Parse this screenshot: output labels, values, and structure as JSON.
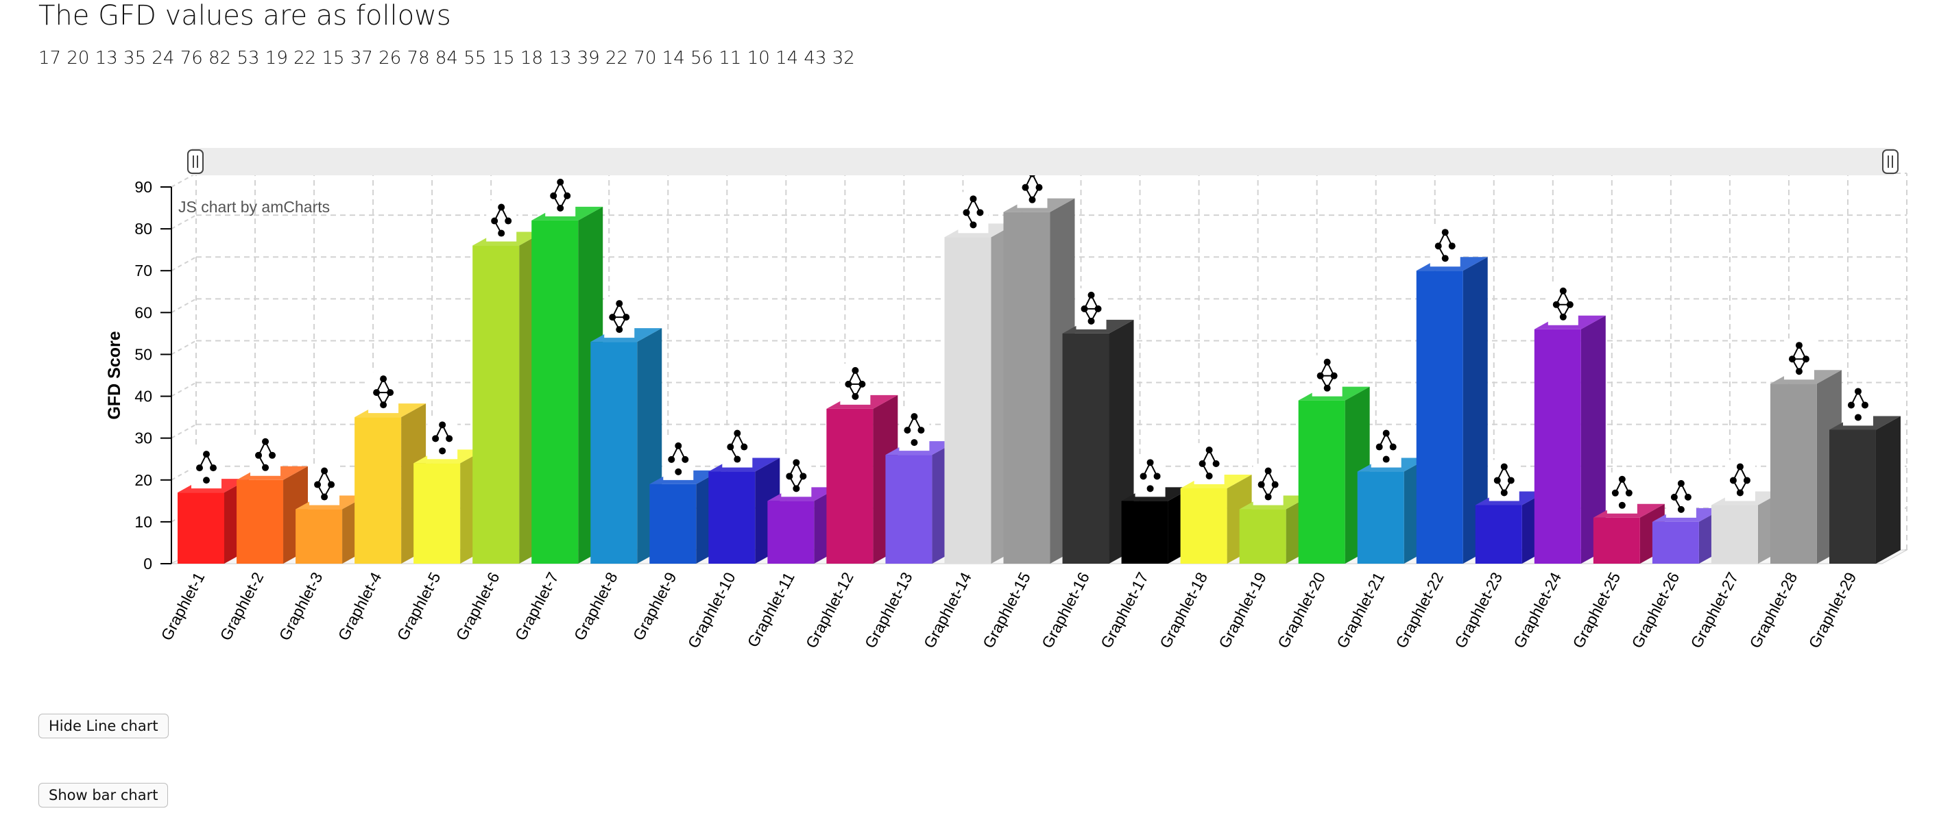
{
  "page": {
    "heading": "The GFD values are as follows",
    "values_line": "17 20 13 35 24 76 82 53 19 22 15 37 26 78 84 55 15 18 13 39 22 70 14 56 11 10 14 43 32"
  },
  "buttons": {
    "hide_line": "Hide Line chart",
    "show_bar": "Show bar chart"
  },
  "chart_data": {
    "type": "bar",
    "style": "3d-column",
    "categories": [
      "Graphlet-1",
      "Graphlet-2",
      "Graphlet-3",
      "Graphlet-4",
      "Graphlet-5",
      "Graphlet-6",
      "Graphlet-7",
      "Graphlet-8",
      "Graphlet-9",
      "Graphlet-10",
      "Graphlet-11",
      "Graphlet-12",
      "Graphlet-13",
      "Graphlet-14",
      "Graphlet-15",
      "Graphlet-16",
      "Graphlet-17",
      "Graphlet-18",
      "Graphlet-19",
      "Graphlet-20",
      "Graphlet-21",
      "Graphlet-22",
      "Graphlet-23",
      "Graphlet-24",
      "Graphlet-25",
      "Graphlet-26",
      "Graphlet-27",
      "Graphlet-28",
      "Graphlet-29"
    ],
    "values": [
      17,
      20,
      13,
      35,
      24,
      76,
      82,
      53,
      19,
      22,
      15,
      37,
      26,
      78,
      84,
      55,
      15,
      18,
      13,
      39,
      22,
      70,
      14,
      56,
      11,
      10,
      14,
      43,
      32
    ],
    "colors": [
      "#ff1f1f",
      "#ff6a1f",
      "#ff9e2a",
      "#fcd330",
      "#f8f838",
      "#b0de2e",
      "#1ecd2e",
      "#1b8fd0",
      "#1656d1",
      "#2a1fd0",
      "#8b1fd0",
      "#c8156e",
      "#7b56e8",
      "#dddddd",
      "#9a9a9a",
      "#333333",
      "#000000",
      "#f8f838",
      "#b0de2e",
      "#1ecd2e",
      "#1b8fd0",
      "#1656d1",
      "#2a1fd0",
      "#8b1fd0",
      "#c8156e",
      "#7b56e8",
      "#dddddd",
      "#9a9a9a",
      "#333333"
    ],
    "ylabel": "GFD Score",
    "xlabel": "",
    "ylim": [
      0,
      90
    ],
    "yticks": [
      0,
      10,
      20,
      30,
      40,
      50,
      60,
      70,
      80,
      90
    ],
    "grid": true,
    "scrollbar": true,
    "watermark": "JS chart by amCharts"
  }
}
